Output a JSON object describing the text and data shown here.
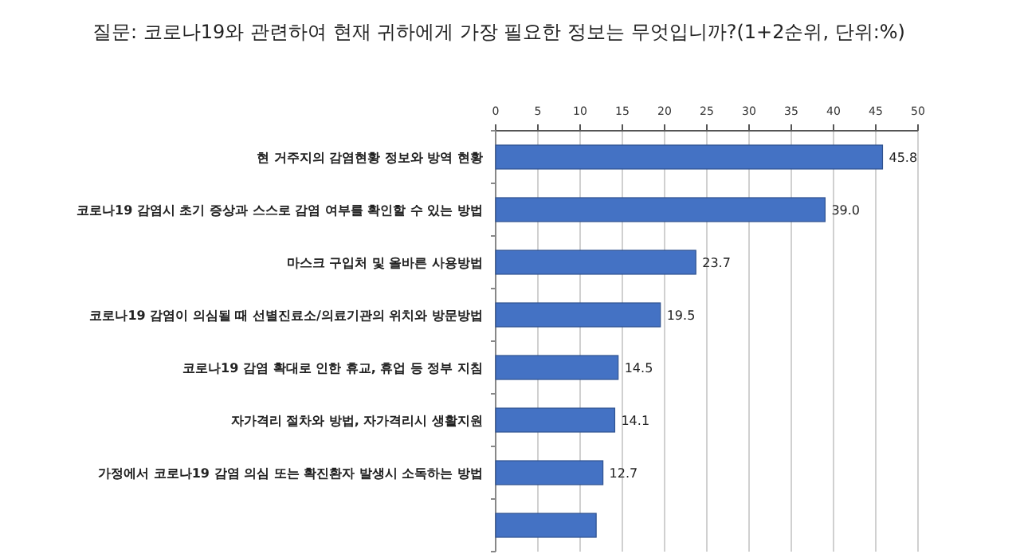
{
  "chart_data": {
    "type": "bar",
    "orientation": "horizontal",
    "title": "질문: 코로나19와 관련하여 현재 귀하에게 가장 필요한 정보는 무엇입니까?(1+2순위, 단위:%)",
    "categories": [
      "현 거주지의 감염현황 정보와 방역 현황",
      "코로나19 감염시 초기 증상과 스스로 감염 여부를 확인할 수 있는 방법",
      "마스크 구입처 및 올바른 사용방법",
      "코로나19 감염이 의심될 때 선별진료소/의료기관의 위치와 방문방법",
      "코로나19 감염 확대로 인한 휴교, 휴업 등 정부 지침",
      "자가격리 절차와 방법, 자가격리시 생활지원",
      "가정에서 코로나19 감염 의심 또는 확진환자 발생시 소독하는 방법",
      null
    ],
    "values": [
      45.8,
      39.0,
      23.7,
      19.5,
      14.5,
      14.1,
      12.7,
      11.9
    ],
    "value_labels": [
      "45.8",
      "39.0",
      "23.7",
      "19.5",
      "14.5",
      "14.1",
      "12.7",
      null
    ],
    "color": "#4472c4",
    "xlim": [
      0,
      50
    ],
    "xticks": [
      0,
      5,
      10,
      15,
      20,
      25,
      30,
      35,
      40,
      45,
      50
    ],
    "grid": "x"
  }
}
